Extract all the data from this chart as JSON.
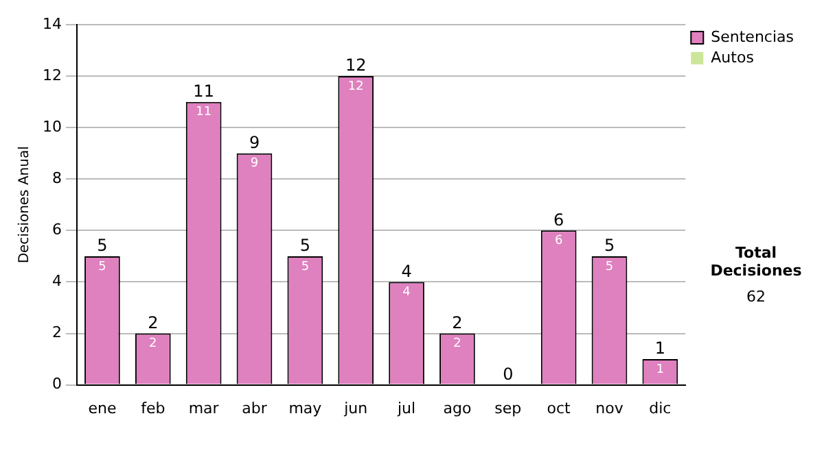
{
  "chart_data": {
    "type": "bar",
    "ylabel": "Decisiones Anual",
    "categories": [
      "ene",
      "feb",
      "mar",
      "abr",
      "may",
      "jun",
      "jul",
      "ago",
      "sep",
      "oct",
      "nov",
      "dic"
    ],
    "series": [
      {
        "name": "Sentencias",
        "color": "#df80bf",
        "values": [
          5,
          2,
          11,
          9,
          5,
          12,
          4,
          2,
          0,
          6,
          5,
          1
        ],
        "value_labels": [
          "5",
          "2",
          "11",
          "9",
          "5",
          "12",
          "4",
          "2",
          null,
          "6",
          "5",
          "1"
        ]
      },
      {
        "name": "Autos",
        "color": "#cce699",
        "values": [
          0,
          0,
          0,
          0,
          0,
          0,
          0,
          0,
          0,
          0,
          0,
          0
        ]
      }
    ],
    "stacked": true,
    "totals": [
      "5",
      "2",
      "11",
      "9",
      "5",
      "12",
      "4",
      "2",
      "0",
      "6",
      "5",
      "1"
    ],
    "ylim": [
      0,
      14
    ],
    "yticks": [
      0,
      2,
      4,
      6,
      8,
      10,
      12,
      14
    ],
    "grid": "y",
    "legend": "right",
    "annotations": [
      "Total Decisiones",
      "62"
    ]
  }
}
